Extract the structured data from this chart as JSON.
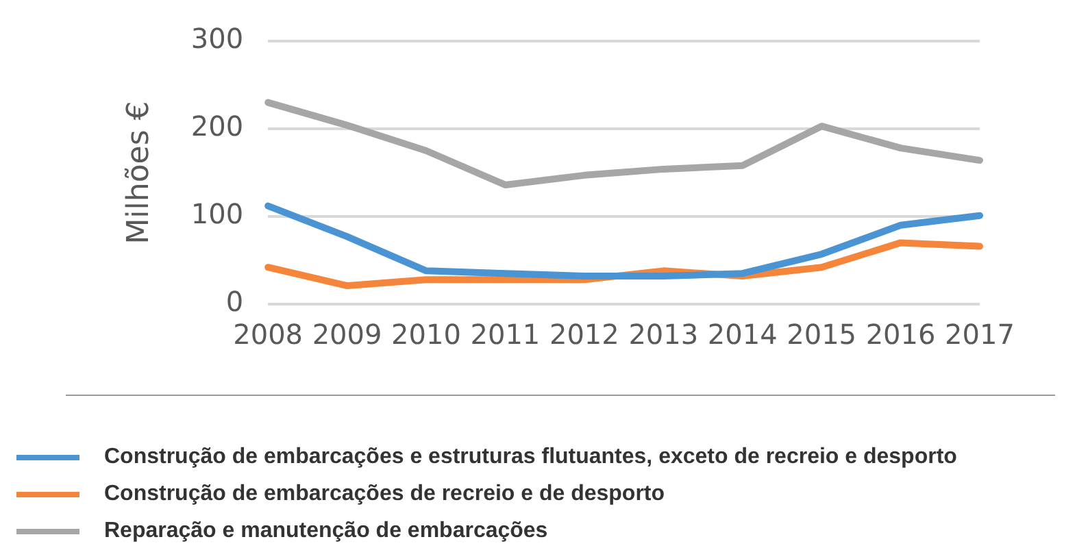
{
  "chart_data": {
    "type": "line",
    "ylabel": "Milhões €",
    "categories": [
      "2008",
      "2009",
      "2010",
      "2011",
      "2012",
      "2013",
      "2014",
      "2015",
      "2016",
      "2017"
    ],
    "series": [
      {
        "name": "Construção de embarcações e estruturas flutuantes, exceto de recreio e desporto",
        "color": "#4a94d4",
        "values": [
          112,
          77,
          38,
          35,
          32,
          32,
          35,
          57,
          90,
          101
        ]
      },
      {
        "name": "Construção de embarcações de recreio e de desporto",
        "color": "#f5853b",
        "values": [
          42,
          21,
          28,
          28,
          28,
          38,
          32,
          42,
          70,
          66
        ]
      },
      {
        "name": "Reparação e manutenção de embarcações",
        "color": "#a6a6a6",
        "values": [
          230,
          204,
          175,
          136,
          147,
          154,
          158,
          203,
          178,
          164
        ]
      }
    ],
    "ylim": [
      0,
      300
    ],
    "yticks": [
      0,
      100,
      200,
      300
    ],
    "grid": "y",
    "legend": "bottom",
    "marker": "none",
    "line_style": "solid"
  }
}
